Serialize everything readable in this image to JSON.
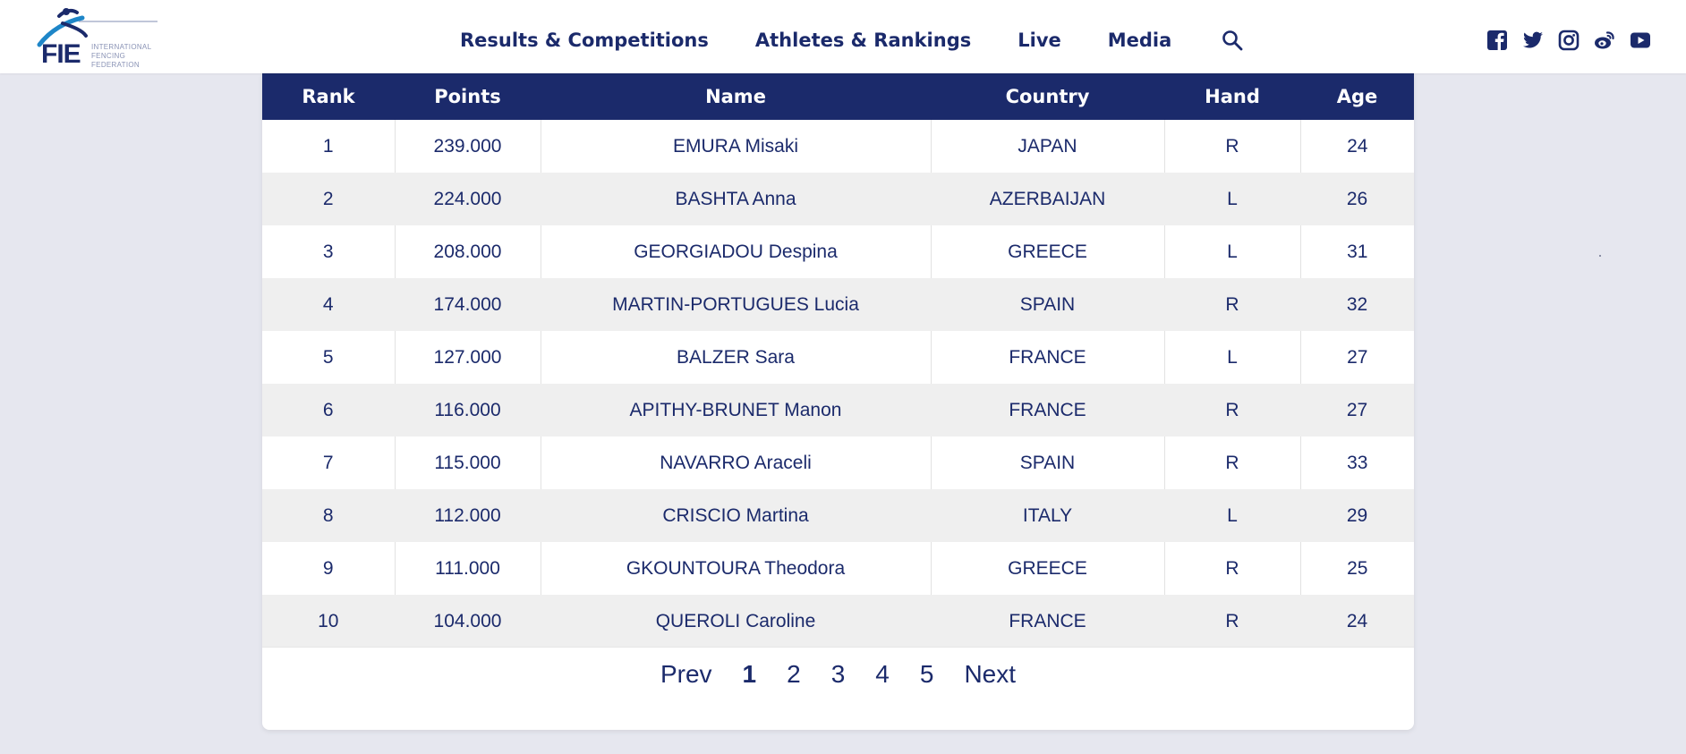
{
  "logo": {
    "abbr": "FIE",
    "line1": "INTERNATIONAL",
    "line2": "FENCING",
    "line3": "FEDERATION"
  },
  "nav": {
    "items": [
      "Results & Competitions",
      "Athletes & Rankings",
      "Live",
      "Media"
    ],
    "search_icon": "search-icon"
  },
  "social": [
    "facebook-icon",
    "twitter-icon",
    "instagram-icon",
    "weibo-icon",
    "youtube-icon"
  ],
  "colors": {
    "navy": "#1b2a6b",
    "background": "#e6e7ef",
    "row_alt": "#efefef"
  },
  "table": {
    "headers": [
      "Rank",
      "Points",
      "Name",
      "Country",
      "Hand",
      "Age"
    ],
    "rows": [
      [
        "1",
        "239.000",
        "EMURA Misaki",
        "JAPAN",
        "R",
        "24"
      ],
      [
        "2",
        "224.000",
        "BASHTA Anna",
        "AZERBAIJAN",
        "L",
        "26"
      ],
      [
        "3",
        "208.000",
        "GEORGIADOU Despina",
        "GREECE",
        "L",
        "31"
      ],
      [
        "4",
        "174.000",
        "MARTIN-PORTUGUES Lucia",
        "SPAIN",
        "R",
        "32"
      ],
      [
        "5",
        "127.000",
        "BALZER Sara",
        "FRANCE",
        "L",
        "27"
      ],
      [
        "6",
        "116.000",
        "APITHY-BRUNET Manon",
        "FRANCE",
        "R",
        "27"
      ],
      [
        "7",
        "115.000",
        "NAVARRO Araceli",
        "SPAIN",
        "R",
        "33"
      ],
      [
        "8",
        "112.000",
        "CRISCIO Martina",
        "ITALY",
        "L",
        "29"
      ],
      [
        "9",
        "111.000",
        "GKOUNTOURA Theodora",
        "GREECE",
        "R",
        "25"
      ],
      [
        "10",
        "104.000",
        "QUEROLI Caroline",
        "FRANCE",
        "R",
        "24"
      ]
    ]
  },
  "pagination": {
    "prev": "Prev",
    "pages": [
      "1",
      "2",
      "3",
      "4",
      "5"
    ],
    "current": "1",
    "next": "Next"
  }
}
